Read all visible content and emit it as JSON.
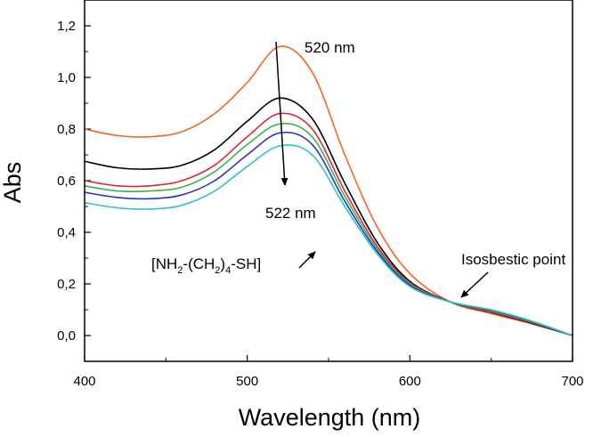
{
  "chart_data": {
    "type": "line",
    "title": "",
    "xlabel": "Wavelength (nm)",
    "ylabel": "Abs",
    "xlim": [
      400,
      700
    ],
    "ylim": [
      -0.1,
      1.3
    ],
    "xticks": [
      400,
      500,
      600,
      700
    ],
    "xtick_labels": [
      "400",
      "500",
      "600",
      "700"
    ],
    "yticks": [
      0.0,
      0.2,
      0.4,
      0.6,
      0.8,
      1.0,
      1.2
    ],
    "ytick_labels": [
      "0,0",
      "0,2",
      "0,4",
      "0,6",
      "0,8",
      "1,0",
      "1,2"
    ],
    "x": [
      400,
      420,
      440,
      460,
      480,
      500,
      520,
      540,
      560,
      580,
      600,
      625,
      650,
      675,
      700
    ],
    "series": [
      {
        "name": "orange",
        "color": "#f26522",
        "values": [
          0.8,
          0.775,
          0.77,
          0.79,
          0.86,
          0.98,
          1.12,
          1.02,
          0.7,
          0.42,
          0.24,
          0.13,
          0.085,
          0.045,
          0.0
        ]
      },
      {
        "name": "black",
        "color": "#000000",
        "values": [
          0.675,
          0.65,
          0.645,
          0.66,
          0.72,
          0.83,
          0.92,
          0.84,
          0.59,
          0.36,
          0.21,
          0.13,
          0.09,
          0.048,
          0.0
        ]
      },
      {
        "name": "red",
        "color": "#e8203a",
        "values": [
          0.6,
          0.58,
          0.58,
          0.6,
          0.66,
          0.77,
          0.86,
          0.8,
          0.56,
          0.345,
          0.205,
          0.13,
          0.092,
          0.05,
          0.0
        ]
      },
      {
        "name": "green",
        "color": "#3ab54a",
        "values": [
          0.58,
          0.56,
          0.56,
          0.575,
          0.635,
          0.74,
          0.82,
          0.77,
          0.54,
          0.335,
          0.2,
          0.13,
          0.095,
          0.052,
          0.0
        ]
      },
      {
        "name": "blue",
        "color": "#2233cc",
        "values": [
          0.555,
          0.535,
          0.53,
          0.545,
          0.6,
          0.7,
          0.785,
          0.74,
          0.52,
          0.325,
          0.195,
          0.13,
          0.098,
          0.054,
          0.0
        ]
      },
      {
        "name": "cyan",
        "color": "#2ec4c4",
        "values": [
          0.515,
          0.495,
          0.49,
          0.505,
          0.56,
          0.655,
          0.735,
          0.7,
          0.5,
          0.315,
          0.19,
          0.13,
          0.1,
          0.056,
          0.0
        ]
      }
    ],
    "annotations": {
      "peak_start": "520 nm",
      "peak_end": "522 nm",
      "isosbestic": "Isosbestic point",
      "reagent_main": "[NH",
      "reagent_sub1": "2",
      "reagent_mid": "-(CH",
      "reagent_sub2": "2",
      "reagent_paren": ")",
      "reagent_sub3": "4",
      "reagent_end": "-SH]"
    }
  }
}
